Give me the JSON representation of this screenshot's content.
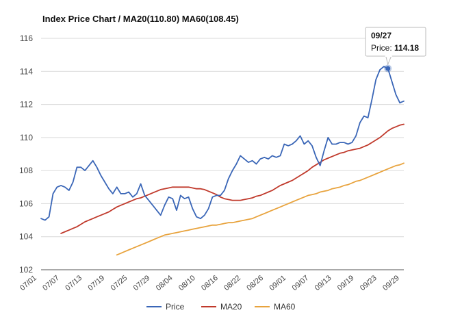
{
  "chart_data": {
    "type": "line",
    "title": "Index Price Chart / MA20(110.80) MA60(108.45)",
    "xlabel": "",
    "ylabel": "",
    "ylim": [
      102,
      116
    ],
    "y_ticks": [
      102,
      104,
      106,
      108,
      110,
      112,
      114,
      116
    ],
    "x_tick_labels": [
      "07/01",
      "07/07",
      "07/13",
      "07/19",
      "07/25",
      "07/29",
      "08/04",
      "08/10",
      "08/16",
      "08/22",
      "08/26",
      "09/01",
      "09/07",
      "09/13",
      "09/19",
      "09/23",
      "09/29"
    ],
    "grid": true,
    "legend": "bottom",
    "series": [
      {
        "name": "Price",
        "color": "#3a66b7",
        "values": [
          105.1,
          105.0,
          105.2,
          106.6,
          107.0,
          107.1,
          107.0,
          106.8,
          107.3,
          108.2,
          108.2,
          108.0,
          108.3,
          108.6,
          108.2,
          107.7,
          107.3,
          106.9,
          106.6,
          107.0,
          106.6,
          106.6,
          106.7,
          106.4,
          106.6,
          107.2,
          106.5,
          106.2,
          105.9,
          105.6,
          105.3,
          105.9,
          106.4,
          106.3,
          105.6,
          106.5,
          106.3,
          106.4,
          105.7,
          105.2,
          105.1,
          105.3,
          105.7,
          106.4,
          106.5,
          106.5,
          106.8,
          107.5,
          108.0,
          108.4,
          108.9,
          108.7,
          108.5,
          108.6,
          108.4,
          108.7,
          108.8,
          108.7,
          108.9,
          108.8,
          108.9,
          109.6,
          109.5,
          109.6,
          109.8,
          110.1,
          109.6,
          109.8,
          109.5,
          108.8,
          108.3,
          109.2,
          110.0,
          109.6,
          109.6,
          109.7,
          109.7,
          109.6,
          109.7,
          110.1,
          110.9,
          111.3,
          111.2,
          112.3,
          113.5,
          114.1,
          114.3,
          114.18,
          113.4,
          112.6,
          112.1,
          112.2
        ]
      },
      {
        "name": "MA20",
        "color": "#c0392b",
        "values": [
          104.2,
          104.3,
          104.4,
          104.5,
          104.6,
          104.75,
          104.9,
          105.0,
          105.1,
          105.2,
          105.3,
          105.4,
          105.5,
          105.65,
          105.8,
          105.9,
          106.0,
          106.1,
          106.2,
          106.3,
          106.35,
          106.45,
          106.55,
          106.65,
          106.75,
          106.85,
          106.9,
          106.95,
          107.0,
          107.0,
          107.0,
          107.0,
          107.0,
          106.95,
          106.9,
          106.9,
          106.85,
          106.75,
          106.65,
          106.55,
          106.4,
          106.3,
          106.25,
          106.2,
          106.2,
          106.2,
          106.25,
          106.3,
          106.35,
          106.45,
          106.5,
          106.6,
          106.7,
          106.8,
          106.95,
          107.1,
          107.2,
          107.3,
          107.4,
          107.55,
          107.7,
          107.85,
          108.0,
          108.2,
          108.35,
          108.5,
          108.65,
          108.75,
          108.85,
          108.95,
          109.05,
          109.1,
          109.2,
          109.25,
          109.3,
          109.35,
          109.45,
          109.55,
          109.7,
          109.85,
          110.0,
          110.2,
          110.4,
          110.55,
          110.65,
          110.75,
          110.8
        ]
      },
      {
        "name": "MA60",
        "color": "#e8a33d",
        "values": [
          102.9,
          103.0,
          103.1,
          103.2,
          103.3,
          103.4,
          103.5,
          103.6,
          103.7,
          103.8,
          103.9,
          104.0,
          104.1,
          104.15,
          104.2,
          104.25,
          104.3,
          104.35,
          104.4,
          104.45,
          104.5,
          104.55,
          104.6,
          104.65,
          104.7,
          104.7,
          104.75,
          104.8,
          104.85,
          104.85,
          104.9,
          104.95,
          105.0,
          105.05,
          105.1,
          105.2,
          105.3,
          105.4,
          105.5,
          105.6,
          105.7,
          105.8,
          105.9,
          106.0,
          106.1,
          106.2,
          106.3,
          106.4,
          106.5,
          106.55,
          106.6,
          106.7,
          106.75,
          106.8,
          106.9,
          106.95,
          107.0,
          107.1,
          107.15,
          107.25,
          107.35,
          107.4,
          107.5,
          107.6,
          107.7,
          107.8,
          107.9,
          108.0,
          108.1,
          108.2,
          108.3,
          108.35,
          108.45
        ]
      }
    ],
    "tooltip": {
      "date": "09/27",
      "label": "Price:",
      "value": "114.18",
      "y": 114.18,
      "x_index": 87
    }
  }
}
